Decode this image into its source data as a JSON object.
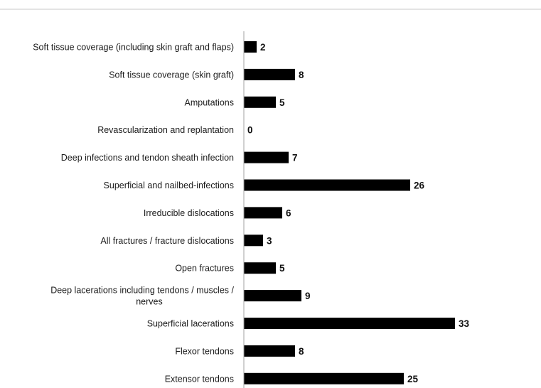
{
  "chart_data": {
    "type": "bar",
    "orientation": "horizontal",
    "categories": [
      "Soft tissue coverage (including skin graft and flaps)",
      "Soft tissue coverage (skin graft)",
      "Amputations",
      "Revascularization and replantation",
      "Deep infections and tendon sheath infection",
      "Superficial and nailbed-infections",
      "Irreducible dislocations",
      "All fractures / fracture dislocations",
      "Open fractures",
      "Deep lacerations including tendons / muscles / nerves",
      "Superficial lacerations",
      "Flexor tendons",
      "Extensor tendons"
    ],
    "category_lines": [
      [
        "Soft tissue coverage (including skin graft and flaps)"
      ],
      [
        "Soft tissue coverage (skin graft)"
      ],
      [
        "Amputations"
      ],
      [
        "Revascularization and replantation"
      ],
      [
        "Deep infections and tendon sheath infection"
      ],
      [
        "Superficial and nailbed-infections"
      ],
      [
        "Irreducible dislocations"
      ],
      [
        "All fractures / fracture dislocations"
      ],
      [
        "Open fractures"
      ],
      [
        "Deep lacerations including tendons / muscles /",
        "nerves"
      ],
      [
        "Superficial lacerations"
      ],
      [
        "Flexor tendons"
      ],
      [
        "Extensor tendons"
      ]
    ],
    "values": [
      2,
      8,
      5,
      0,
      7,
      26,
      6,
      3,
      5,
      9,
      33,
      8,
      25
    ],
    "xlim": [
      0,
      33
    ],
    "grid": false,
    "legend": "none",
    "data_labels": true,
    "bar_color": "#000000",
    "divider_color": "#c8c8c8",
    "axis_color": "#a0a0a0"
  }
}
